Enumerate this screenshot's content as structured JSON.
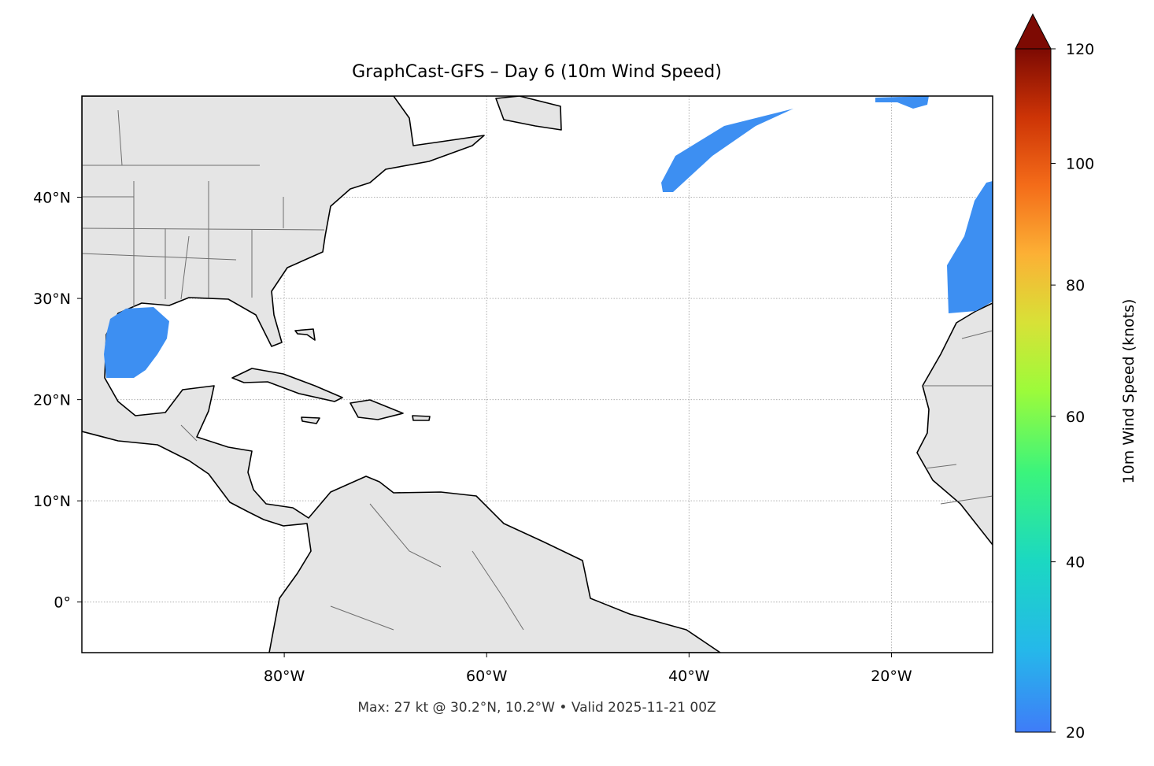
{
  "title": "GraphCast-GFS – Day 6 (10m Wind Speed)",
  "map": {
    "xlim": [
      -100,
      -10
    ],
    "ylim": [
      -5,
      50
    ],
    "xticks": [
      {
        "value": -80,
        "label": "80°W"
      },
      {
        "value": -60,
        "label": "60°W"
      },
      {
        "value": -40,
        "label": "40°W"
      },
      {
        "value": -20,
        "label": "20°W"
      }
    ],
    "yticks": [
      {
        "value": 0,
        "label": "0°"
      },
      {
        "value": 10,
        "label": "10°N"
      },
      {
        "value": 20,
        "label": "20°N"
      },
      {
        "value": 30,
        "label": "30°N"
      },
      {
        "value": 40,
        "label": "40°N"
      }
    ],
    "grid": true
  },
  "colorbar": {
    "label": "10m Wind Speed (knots)",
    "lim": [
      20,
      120
    ],
    "ticks": [
      20,
      40,
      60,
      80,
      100,
      120
    ]
  },
  "footer": "Max: 27 kt @ 30.2°N, 10.2°W • Valid 2025-11-21 00Z"
}
